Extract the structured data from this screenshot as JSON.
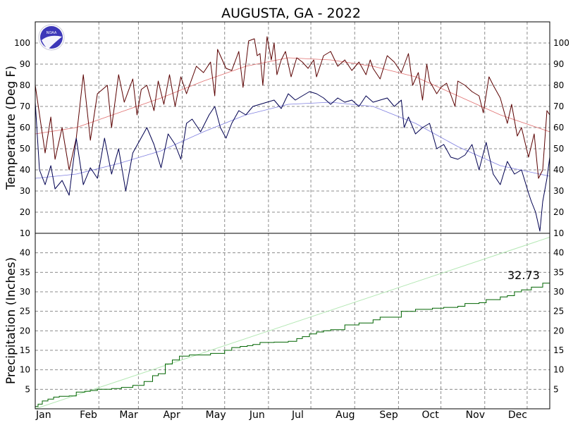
{
  "title": "AUGUSTA, GA - 2022",
  "colors": {
    "max_temp": "#5a0000",
    "min_temp": "#000050",
    "normal_max": "#e07070",
    "normal_min": "#7f7fe0",
    "precip": "#006400",
    "normal_precip": "#b4e8b4",
    "logo": "#3c37b8"
  },
  "logo_icon": "noaa-logo",
  "logo_text": "NOAA",
  "chart_data": [
    {
      "type": "line",
      "title": "AUGUSTA, GA - 2022",
      "ylabel": "Temperature (Deg F)",
      "ylim": [
        10,
        110
      ],
      "yticks": [
        10,
        20,
        30,
        40,
        50,
        60,
        70,
        80,
        90,
        100
      ],
      "grid": true,
      "x_months": [
        "Jan",
        "Feb",
        "Mar",
        "Apr",
        "May",
        "Jun",
        "Jul",
        "Aug",
        "Sep",
        "Oct",
        "Nov",
        "Dec"
      ],
      "days_in_year": 365,
      "series": [
        {
          "role": "max_temp",
          "day": [
            1,
            8,
            12,
            15,
            20,
            25,
            30,
            35,
            40,
            45,
            52,
            55,
            60,
            64,
            70,
            73,
            76,
            80,
            85,
            88,
            92,
            96,
            100,
            104,
            108,
            115,
            120,
            125,
            128,
            130,
            136,
            140,
            145,
            148,
            152,
            156,
            158,
            160,
            162,
            165,
            168,
            170,
            172,
            175,
            178,
            182,
            186,
            190,
            194,
            198,
            200,
            205,
            210,
            215,
            220,
            225,
            230,
            235,
            238,
            240,
            245,
            250,
            255,
            260,
            265,
            268,
            272,
            275,
            278,
            280,
            285,
            288,
            292,
            298,
            300,
            305,
            310,
            315,
            318,
            322,
            325,
            330,
            335,
            338,
            342,
            345,
            350,
            354,
            357,
            360,
            363,
            365
          ],
          "temp": [
            80,
            48,
            65,
            45,
            60,
            40,
            55,
            85,
            54,
            76,
            80,
            60,
            85,
            72,
            83,
            66,
            78,
            80,
            68,
            82,
            71,
            85,
            70,
            84,
            76,
            89,
            86,
            91,
            75,
            97,
            88,
            87,
            96,
            79,
            101,
            102,
            94,
            95,
            80,
            103,
            92,
            100,
            85,
            92,
            96,
            84,
            93,
            91,
            88,
            92,
            84,
            94,
            96,
            89,
            92,
            87,
            91,
            85,
            92,
            88,
            83,
            94,
            91,
            86,
            95,
            80,
            86,
            73,
            90,
            82,
            76,
            79,
            81,
            70,
            82,
            80,
            77,
            75,
            67,
            84,
            80,
            74,
            62,
            71,
            56,
            60,
            46,
            57,
            36,
            40,
            68,
            66
          ]
        },
        {
          "role": "min_temp",
          "day": [
            1,
            4,
            8,
            12,
            15,
            20,
            25,
            30,
            35,
            40,
            45,
            50,
            55,
            60,
            65,
            70,
            75,
            80,
            85,
            90,
            95,
            100,
            104,
            108,
            112,
            118,
            124,
            128,
            132,
            136,
            140,
            145,
            150,
            155,
            160,
            165,
            170,
            175,
            180,
            185,
            190,
            195,
            200,
            205,
            210,
            215,
            220,
            225,
            230,
            235,
            240,
            245,
            250,
            255,
            260,
            262,
            265,
            270,
            275,
            280,
            285,
            290,
            295,
            300,
            305,
            310,
            315,
            320,
            325,
            330,
            335,
            340,
            345,
            350,
            352,
            355,
            358,
            360,
            363,
            365
          ],
          "temp": [
            72,
            40,
            33,
            42,
            31,
            35,
            28,
            55,
            33,
            41,
            36,
            55,
            38,
            50,
            30,
            48,
            54,
            60,
            52,
            41,
            57,
            52,
            45,
            62,
            64,
            58,
            66,
            70,
            60,
            55,
            62,
            68,
            66,
            70,
            71,
            72,
            73,
            69,
            76,
            73,
            75,
            77,
            76,
            74,
            71,
            74,
            72,
            73,
            70,
            75,
            72,
            73,
            74,
            70,
            73,
            60,
            65,
            57,
            60,
            62,
            50,
            52,
            46,
            45,
            47,
            52,
            40,
            53,
            38,
            33,
            44,
            38,
            40,
            29,
            25,
            20,
            11,
            25,
            36,
            46
          ]
        },
        {
          "role": "normal_max",
          "day": [
            1,
            30,
            60,
            90,
            120,
            150,
            180,
            210,
            240,
            270,
            300,
            330,
            365
          ],
          "temp": [
            57,
            60,
            67,
            74,
            82,
            89,
            93,
            92,
            89,
            84,
            75,
            66,
            58
          ]
        },
        {
          "role": "normal_min",
          "day": [
            1,
            30,
            60,
            90,
            120,
            150,
            180,
            210,
            240,
            270,
            300,
            330,
            365
          ],
          "temp": [
            36,
            38,
            43,
            49,
            58,
            66,
            71,
            72,
            70,
            62,
            51,
            42,
            37
          ]
        }
      ]
    },
    {
      "type": "line",
      "ylabel": "Precipitation (Inches)",
      "ylim": [
        0,
        45
      ],
      "yticks": [
        5,
        10,
        15,
        20,
        25,
        30,
        35,
        40
      ],
      "grid": true,
      "x_months": [
        "Jan",
        "Feb",
        "Mar",
        "Apr",
        "May",
        "Jun",
        "Jul",
        "Aug",
        "Sep",
        "Oct",
        "Nov",
        "Dec"
      ],
      "annotation": "32.73",
      "series": [
        {
          "role": "precip",
          "step": true,
          "day": [
            1,
            3,
            6,
            10,
            14,
            18,
            25,
            30,
            36,
            40,
            45,
            55,
            62,
            70,
            78,
            84,
            88,
            93,
            98,
            103,
            110,
            125,
            135,
            140,
            146,
            151,
            155,
            160,
            170,
            180,
            186,
            190,
            195,
            200,
            205,
            210,
            220,
            230,
            240,
            245,
            260,
            270,
            282,
            290,
            300,
            305,
            315,
            320,
            330,
            335,
            340,
            345,
            352,
            360,
            365
          ],
          "precip": [
            0.6,
            1.2,
            2.0,
            2.5,
            3.0,
            3.2,
            3.3,
            4.3,
            4.5,
            4.7,
            5.0,
            5.2,
            5.5,
            6.0,
            7.0,
            8.5,
            9.0,
            11.5,
            12.5,
            13.5,
            13.8,
            14.2,
            15.0,
            15.7,
            16.0,
            16.2,
            16.5,
            17.0,
            17.1,
            17.3,
            18.0,
            18.5,
            19.2,
            19.7,
            20.0,
            20.3,
            21.5,
            22.0,
            22.8,
            23.5,
            25.0,
            25.5,
            25.8,
            26.0,
            26.3,
            27.0,
            27.2,
            28.0,
            28.7,
            29.0,
            30.0,
            30.5,
            31.2,
            32.2,
            32.73
          ]
        },
        {
          "role": "normal_precip",
          "day": [
            1,
            365
          ],
          "precip": [
            0,
            44
          ]
        }
      ]
    }
  ]
}
